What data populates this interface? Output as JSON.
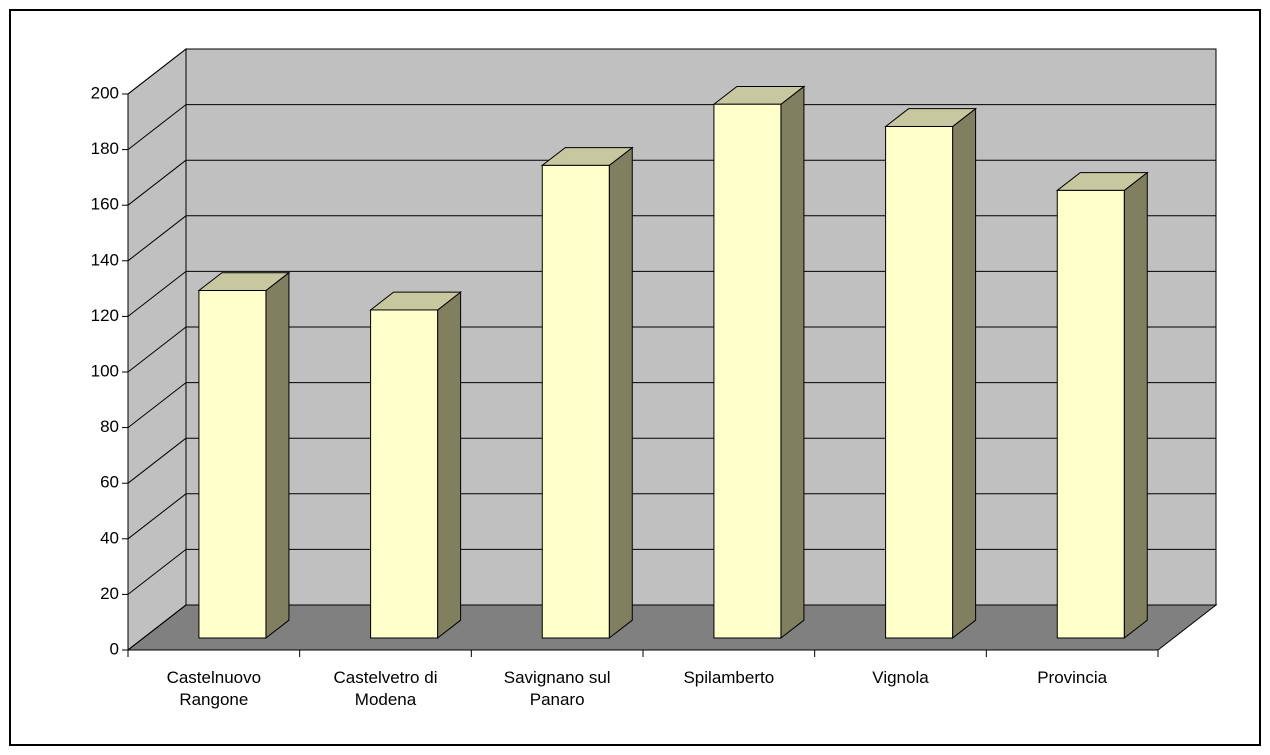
{
  "chart_data": {
    "type": "bar3d",
    "categories": [
      "Castelnuovo Rangone",
      "Castelvetro di Modena",
      "Savignano sul Panaro",
      "Spilamberto",
      "Vignola",
      "Provincia"
    ],
    "values": [
      125,
      118,
      170,
      192,
      184,
      161
    ],
    "color": "#ffffcc",
    "ylim": [
      0,
      200
    ],
    "yticks": [
      0,
      20,
      40,
      60,
      80,
      100,
      120,
      140,
      160,
      180,
      200
    ],
    "grid": true
  }
}
